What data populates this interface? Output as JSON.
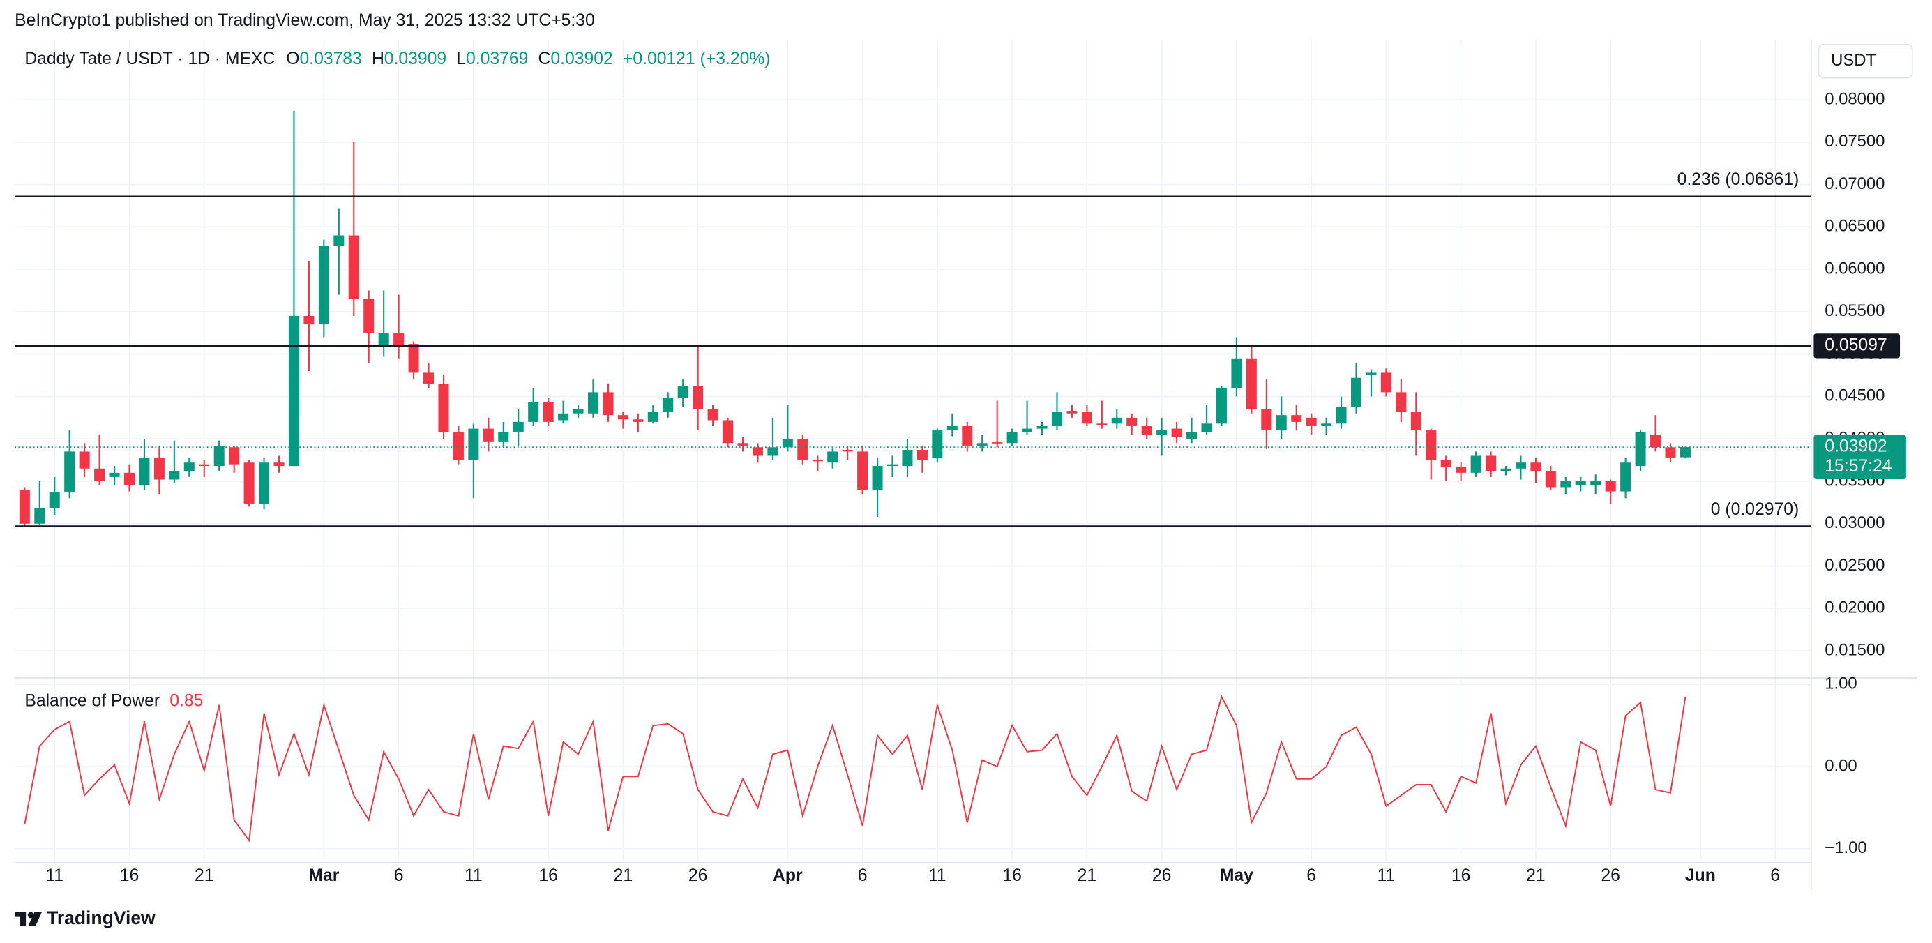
{
  "header": {
    "published": "BeInCrypto1 published on TradingView.com, May 31, 2025 13:32 UTC+5:30"
  },
  "footer": {
    "brand": "TradingView"
  },
  "chart_data": [
    {
      "type": "candlestick",
      "title": "Daddy Tate / USDT · 1D · MEXC",
      "ohlc": [
        {
          "key": "O",
          "value": "0.03783"
        },
        {
          "key": "H",
          "value": "0.03909"
        },
        {
          "key": "L",
          "value": "0.03769"
        },
        {
          "key": "C",
          "value": "0.03902"
        }
      ],
      "change": "+0.00121 (+3.20%)",
      "axis_label": "USDT",
      "last_price_label": "0.03902",
      "countdown": "15:57:24",
      "up_color": "#089981",
      "down_color": "#f23645",
      "grid": true,
      "x": [
        "02-09",
        "02-10",
        "02-11",
        "02-12",
        "02-13",
        "02-14",
        "02-15",
        "02-16",
        "02-17",
        "02-18",
        "02-19",
        "02-20",
        "02-21",
        "02-22",
        "02-23",
        "02-24",
        "02-25",
        "02-26",
        "02-27",
        "02-28",
        "03-01",
        "03-02",
        "03-03",
        "03-04",
        "03-05",
        "03-06",
        "03-07",
        "03-08",
        "03-09",
        "03-10",
        "03-11",
        "03-12",
        "03-13",
        "03-14",
        "03-15",
        "03-16",
        "03-17",
        "03-18",
        "03-19",
        "03-20",
        "03-21",
        "03-22",
        "03-23",
        "03-24",
        "03-25",
        "03-26",
        "03-27",
        "03-28",
        "03-29",
        "03-30",
        "03-31",
        "04-01",
        "04-02",
        "04-03",
        "04-04",
        "04-05",
        "04-06",
        "04-07",
        "04-08",
        "04-09",
        "04-10",
        "04-11",
        "04-12",
        "04-13",
        "04-14",
        "04-15",
        "04-16",
        "04-17",
        "04-18",
        "04-19",
        "04-20",
        "04-21",
        "04-22",
        "04-23",
        "04-24",
        "04-25",
        "04-26",
        "04-27",
        "04-28",
        "04-29",
        "04-30",
        "05-01",
        "05-02",
        "05-03",
        "05-04",
        "05-05",
        "05-06",
        "05-07",
        "05-08",
        "05-09",
        "05-10",
        "05-11",
        "05-12",
        "05-13",
        "05-14",
        "05-15",
        "05-16",
        "05-17",
        "05-18",
        "05-19",
        "05-20",
        "05-21",
        "05-22",
        "05-23",
        "05-24",
        "05-25",
        "05-26",
        "05-27",
        "05-28",
        "05-29",
        "05-30",
        "05-31"
      ],
      "open": [
        0.034,
        0.03,
        0.0318,
        0.0337,
        0.0385,
        0.0365,
        0.0355,
        0.036,
        0.0345,
        0.0378,
        0.0352,
        0.0362,
        0.037,
        0.0368,
        0.039,
        0.0372,
        0.0323,
        0.0372,
        0.0368,
        0.0545,
        0.0535,
        0.0628,
        0.064,
        0.0565,
        0.051,
        0.0525,
        0.0512,
        0.0478,
        0.0465,
        0.0408,
        0.0375,
        0.0412,
        0.0397,
        0.0408,
        0.042,
        0.0443,
        0.0422,
        0.043,
        0.043,
        0.0455,
        0.0428,
        0.0423,
        0.042,
        0.0432,
        0.0448,
        0.0462,
        0.0435,
        0.0422,
        0.0395,
        0.039,
        0.038,
        0.039,
        0.04,
        0.0375,
        0.0372,
        0.0387,
        0.0385,
        0.034,
        0.0368,
        0.0368,
        0.0387,
        0.0377,
        0.041,
        0.0415,
        0.0392,
        0.0396,
        0.0395,
        0.0408,
        0.0412,
        0.0415,
        0.0433,
        0.0432,
        0.0418,
        0.0418,
        0.0425,
        0.0415,
        0.0405,
        0.0412,
        0.04,
        0.0408,
        0.0418,
        0.046,
        0.0495,
        0.0435,
        0.041,
        0.0428,
        0.0425,
        0.0415,
        0.0418,
        0.0438,
        0.0475,
        0.0478,
        0.0455,
        0.0432,
        0.041,
        0.0375,
        0.0367,
        0.036,
        0.038,
        0.0362,
        0.0365,
        0.0372,
        0.0362,
        0.0343,
        0.0345,
        0.0345,
        0.035,
        0.0338,
        0.0368,
        0.0405,
        0.039,
        0.03783
      ],
      "high": [
        0.0343,
        0.035,
        0.0355,
        0.041,
        0.0395,
        0.0405,
        0.0368,
        0.037,
        0.04,
        0.0392,
        0.0398,
        0.0378,
        0.0375,
        0.0398,
        0.0392,
        0.0375,
        0.0378,
        0.038,
        0.0787,
        0.061,
        0.0635,
        0.0672,
        0.075,
        0.0575,
        0.0575,
        0.057,
        0.0515,
        0.049,
        0.0475,
        0.0415,
        0.0418,
        0.0425,
        0.042,
        0.0435,
        0.046,
        0.0448,
        0.0445,
        0.044,
        0.047,
        0.0465,
        0.0432,
        0.043,
        0.044,
        0.0455,
        0.047,
        0.051,
        0.044,
        0.0425,
        0.0402,
        0.0395,
        0.0425,
        0.044,
        0.0405,
        0.038,
        0.039,
        0.0392,
        0.0392,
        0.0378,
        0.038,
        0.04,
        0.0392,
        0.0412,
        0.043,
        0.042,
        0.0405,
        0.0445,
        0.0412,
        0.0445,
        0.042,
        0.0455,
        0.044,
        0.044,
        0.0445,
        0.0435,
        0.043,
        0.0425,
        0.0425,
        0.042,
        0.0425,
        0.044,
        0.0462,
        0.052,
        0.051,
        0.047,
        0.045,
        0.044,
        0.043,
        0.0425,
        0.045,
        0.049,
        0.0482,
        0.0483,
        0.047,
        0.0455,
        0.0412,
        0.038,
        0.0372,
        0.0385,
        0.0385,
        0.0368,
        0.038,
        0.0378,
        0.0368,
        0.0355,
        0.0355,
        0.0358,
        0.0352,
        0.0378,
        0.041,
        0.0428,
        0.0395,
        0.03909
      ],
      "low": [
        0.0297,
        0.0298,
        0.031,
        0.033,
        0.0355,
        0.0345,
        0.0345,
        0.0338,
        0.034,
        0.0335,
        0.0348,
        0.0355,
        0.0355,
        0.0362,
        0.036,
        0.032,
        0.0317,
        0.036,
        0.0368,
        0.048,
        0.052,
        0.057,
        0.0545,
        0.049,
        0.0497,
        0.0495,
        0.047,
        0.046,
        0.04,
        0.037,
        0.033,
        0.0385,
        0.039,
        0.0392,
        0.0415,
        0.0415,
        0.0418,
        0.0425,
        0.0425,
        0.042,
        0.0412,
        0.0408,
        0.0418,
        0.0425,
        0.0438,
        0.041,
        0.0415,
        0.039,
        0.0385,
        0.0372,
        0.0375,
        0.0385,
        0.037,
        0.0362,
        0.0365,
        0.0375,
        0.0335,
        0.0308,
        0.0355,
        0.0355,
        0.036,
        0.0372,
        0.0403,
        0.0385,
        0.0385,
        0.039,
        0.0392,
        0.0405,
        0.0405,
        0.041,
        0.0425,
        0.0415,
        0.0412,
        0.0412,
        0.0405,
        0.04,
        0.038,
        0.0395,
        0.0395,
        0.0405,
        0.0415,
        0.045,
        0.043,
        0.0388,
        0.04,
        0.041,
        0.0405,
        0.0405,
        0.0412,
        0.043,
        0.045,
        0.045,
        0.042,
        0.038,
        0.0352,
        0.035,
        0.035,
        0.0355,
        0.0355,
        0.0357,
        0.0352,
        0.0348,
        0.034,
        0.0335,
        0.0338,
        0.0335,
        0.0323,
        0.033,
        0.0362,
        0.0385,
        0.0372,
        0.03769
      ],
      "close": [
        0.03,
        0.0318,
        0.0337,
        0.0385,
        0.0365,
        0.035,
        0.036,
        0.0345,
        0.0378,
        0.0352,
        0.0362,
        0.0372,
        0.0368,
        0.0392,
        0.037,
        0.0323,
        0.0372,
        0.0368,
        0.0545,
        0.0535,
        0.0628,
        0.064,
        0.0565,
        0.0525,
        0.0525,
        0.051,
        0.0478,
        0.0465,
        0.0408,
        0.0375,
        0.0412,
        0.0397,
        0.0408,
        0.042,
        0.0443,
        0.042,
        0.043,
        0.0435,
        0.0455,
        0.0428,
        0.0423,
        0.042,
        0.0432,
        0.0448,
        0.0462,
        0.0435,
        0.0422,
        0.0395,
        0.0392,
        0.038,
        0.039,
        0.04,
        0.0375,
        0.0374,
        0.0385,
        0.0385,
        0.034,
        0.0368,
        0.037,
        0.0387,
        0.0375,
        0.041,
        0.0415,
        0.0392,
        0.0395,
        0.0395,
        0.0408,
        0.0412,
        0.0415,
        0.0432,
        0.043,
        0.0418,
        0.0416,
        0.0425,
        0.0415,
        0.0405,
        0.041,
        0.0402,
        0.0408,
        0.0418,
        0.046,
        0.0495,
        0.0435,
        0.041,
        0.0428,
        0.042,
        0.0415,
        0.0418,
        0.0438,
        0.0472,
        0.0478,
        0.0455,
        0.0432,
        0.041,
        0.0375,
        0.0367,
        0.036,
        0.038,
        0.0362,
        0.0365,
        0.0372,
        0.0362,
        0.0343,
        0.035,
        0.035,
        0.035,
        0.0338,
        0.0372,
        0.0408,
        0.039,
        0.0378,
        0.03902
      ],
      "xlim": [
        "02-09",
        "06-08"
      ],
      "xticks": [
        {
          "value": "02-11",
          "label": "11"
        },
        {
          "value": "02-16",
          "label": "16"
        },
        {
          "value": "02-21",
          "label": "21"
        },
        {
          "value": "03-01",
          "label": "Mar"
        },
        {
          "value": "03-06",
          "label": "6"
        },
        {
          "value": "03-11",
          "label": "11"
        },
        {
          "value": "03-16",
          "label": "16"
        },
        {
          "value": "03-21",
          "label": "21"
        },
        {
          "value": "03-26",
          "label": "26"
        },
        {
          "value": "04-01",
          "label": "Apr"
        },
        {
          "value": "04-06",
          "label": "6"
        },
        {
          "value": "04-11",
          "label": "11"
        },
        {
          "value": "04-16",
          "label": "16"
        },
        {
          "value": "04-21",
          "label": "21"
        },
        {
          "value": "04-26",
          "label": "26"
        },
        {
          "value": "05-01",
          "label": "May"
        },
        {
          "value": "05-06",
          "label": "6"
        },
        {
          "value": "05-11",
          "label": "11"
        },
        {
          "value": "05-16",
          "label": "16"
        },
        {
          "value": "05-21",
          "label": "21"
        },
        {
          "value": "05-26",
          "label": "26"
        },
        {
          "value": "06-01",
          "label": "Jun"
        },
        {
          "value": "06-06",
          "label": "6"
        }
      ],
      "ylim": [
        0.0118,
        0.0871
      ],
      "yticks": [
        {
          "value": 0.08,
          "label": "0.08000"
        },
        {
          "value": 0.075,
          "label": "0.07500"
        },
        {
          "value": 0.07,
          "label": "0.07000"
        },
        {
          "value": 0.065,
          "label": "0.06500"
        },
        {
          "value": 0.06,
          "label": "0.06000"
        },
        {
          "value": 0.055,
          "label": "0.05500"
        },
        {
          "value": 0.05,
          "label": "0.05000"
        },
        {
          "value": 0.045,
          "label": "0.04500"
        },
        {
          "value": 0.04,
          "label": "0.04000"
        },
        {
          "value": 0.035,
          "label": "0.03500"
        },
        {
          "value": 0.03,
          "label": "0.03000"
        },
        {
          "value": 0.025,
          "label": "0.02500"
        },
        {
          "value": 0.02,
          "label": "0.02000"
        },
        {
          "value": 0.015,
          "label": "0.01500"
        }
      ],
      "hlines": [
        {
          "value": 0.06861,
          "label": "0.236 (0.06861)"
        },
        {
          "value": 0.05097,
          "label": "0.05097"
        },
        {
          "value": 0.0297,
          "label": "0 (0.02970)"
        }
      ]
    },
    {
      "type": "line",
      "title": "Balance of Power",
      "last_value": 0.85,
      "color": "#f23645",
      "grid": true,
      "x": [
        "02-09",
        "02-10",
        "02-11",
        "02-12",
        "02-13",
        "02-14",
        "02-15",
        "02-16",
        "02-17",
        "02-18",
        "02-19",
        "02-20",
        "02-21",
        "02-22",
        "02-23",
        "02-24",
        "02-25",
        "02-26",
        "02-27",
        "02-28",
        "03-01",
        "03-02",
        "03-03",
        "03-04",
        "03-05",
        "03-06",
        "03-07",
        "03-08",
        "03-09",
        "03-10",
        "03-11",
        "03-12",
        "03-13",
        "03-14",
        "03-15",
        "03-16",
        "03-17",
        "03-18",
        "03-19",
        "03-20",
        "03-21",
        "03-22",
        "03-23",
        "03-24",
        "03-25",
        "03-26",
        "03-27",
        "03-28",
        "03-29",
        "03-30",
        "03-31",
        "04-01",
        "04-02",
        "04-03",
        "04-04",
        "04-05",
        "04-06",
        "04-07",
        "04-08",
        "04-09",
        "04-10",
        "04-11",
        "04-12",
        "04-13",
        "04-14",
        "04-15",
        "04-16",
        "04-17",
        "04-18",
        "04-19",
        "04-20",
        "04-21",
        "04-22",
        "04-23",
        "04-24",
        "04-25",
        "04-26",
        "04-27",
        "04-28",
        "04-29",
        "04-30",
        "05-01",
        "05-02",
        "05-03",
        "05-04",
        "05-05",
        "05-06",
        "05-07",
        "05-08",
        "05-09",
        "05-10",
        "05-11",
        "05-12",
        "05-13",
        "05-14",
        "05-15",
        "05-16",
        "05-17",
        "05-18",
        "05-19",
        "05-20",
        "05-21",
        "05-22",
        "05-23",
        "05-24",
        "05-25",
        "05-26",
        "05-27",
        "05-28",
        "05-29",
        "05-30",
        "05-31"
      ],
      "values": [
        -0.7,
        0.25,
        0.45,
        0.55,
        -0.35,
        -0.15,
        0.02,
        -0.45,
        0.55,
        -0.4,
        0.15,
        0.55,
        -0.05,
        0.75,
        -0.65,
        -0.9,
        0.65,
        -0.1,
        0.4,
        -0.1,
        0.75,
        0.2,
        -0.35,
        -0.65,
        0.18,
        -0.15,
        -0.6,
        -0.28,
        -0.55,
        -0.6,
        0.4,
        -0.4,
        0.25,
        0.22,
        0.55,
        -0.6,
        0.3,
        0.15,
        0.55,
        -0.78,
        -0.12,
        -0.12,
        0.5,
        0.52,
        0.4,
        -0.28,
        -0.55,
        -0.6,
        -0.15,
        -0.5,
        0.15,
        0.2,
        -0.6,
        0.0,
        0.5,
        -0.1,
        -0.72,
        0.38,
        0.15,
        0.38,
        -0.28,
        0.75,
        0.2,
        -0.68,
        0.08,
        0.0,
        0.5,
        0.18,
        0.2,
        0.4,
        -0.12,
        -0.35,
        0.0,
        0.38,
        -0.3,
        -0.42,
        0.25,
        -0.28,
        0.15,
        0.2,
        0.85,
        0.5,
        -0.68,
        -0.32,
        0.3,
        -0.15,
        -0.15,
        0.0,
        0.38,
        0.48,
        0.15,
        -0.48,
        -0.35,
        -0.22,
        -0.22,
        -0.55,
        -0.12,
        -0.2,
        0.65,
        -0.45,
        0.02,
        0.25,
        -0.25,
        -0.72,
        0.3,
        0.2,
        -0.48,
        0.62,
        0.78,
        -0.28,
        -0.32,
        0.85
      ],
      "ylim": [
        -1.17,
        1.08
      ],
      "yticks": [
        {
          "value": 1,
          "label": "1.00"
        },
        {
          "value": 0,
          "label": "0.00"
        },
        {
          "value": -1,
          "label": "−1.00"
        }
      ]
    }
  ]
}
